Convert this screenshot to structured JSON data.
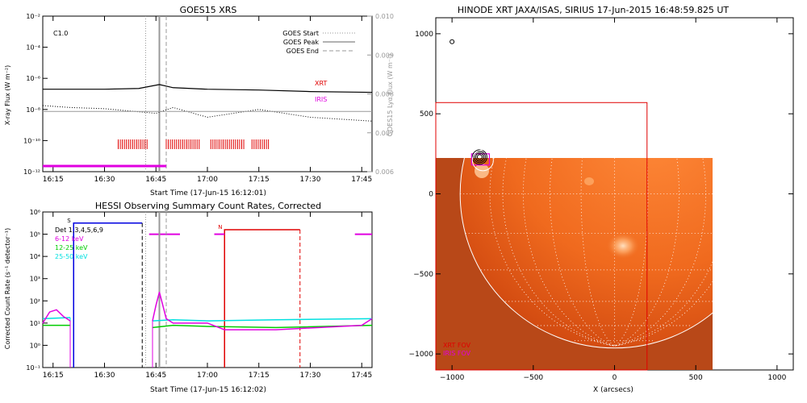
{
  "chart_data": [
    {
      "type": "line",
      "title": "GOES15 XRS",
      "xlabel": "Start Time (17-Jun-15 16:12:01)",
      "ylabel": "X-ray Flux (W m⁻²)",
      "ylabel_right": "GOES15 Lyα Flux (W m⁻²)",
      "x_ticks": [
        "16:15",
        "16:30",
        "16:45",
        "17:00",
        "17:15",
        "17:30",
        "17:45"
      ],
      "y_ticks": [
        "10⁻²",
        "10⁻⁴",
        "10⁻⁶",
        "10⁻⁸",
        "10⁻¹⁰",
        "10⁻¹²"
      ],
      "y2_ticks": [
        "0.010",
        "0.009",
        "0.008",
        "0.007",
        "0.006"
      ],
      "ylim_log10": [
        -12,
        -2
      ],
      "y2lim": [
        0.006,
        0.01
      ],
      "class_label": "C1.0",
      "legend": {
        "start": "GOES Start",
        "peak": "GOES Peak",
        "end": "GOES End"
      },
      "series_labels": {
        "xrt": "XRT",
        "iris": "IRIS"
      },
      "goes_times": {
        "start": "16:42",
        "peak": "16:46",
        "end": "16:48"
      },
      "series": [
        {
          "name": "GOES long",
          "x": [
            "16:12",
            "16:30",
            "16:40",
            "16:46",
            "16:50",
            "17:00",
            "17:15",
            "17:30",
            "17:48"
          ],
          "log10_values": [
            -6.7,
            -6.7,
            -6.65,
            -6.4,
            -6.6,
            -6.7,
            -6.75,
            -6.85,
            -6.9
          ]
        },
        {
          "name": "Lyα",
          "x": [
            "16:12",
            "16:20",
            "16:30",
            "16:45",
            "16:50",
            "17:00",
            "17:15",
            "17:30",
            "17:48"
          ],
          "values": [
            0.0077,
            0.00765,
            0.00762,
            0.0075,
            0.00765,
            0.0074,
            0.0076,
            0.0074,
            0.0073
          ]
        },
        {
          "name": "XRT",
          "x": [
            "16:34",
            "16:43",
            "16:48",
            "16:58",
            "17:01",
            "17:11",
            "17:13",
            "17:18"
          ]
        },
        {
          "name": "IRIS",
          "x": [
            "16:12",
            "16:48"
          ]
        }
      ]
    },
    {
      "type": "line",
      "title": "HESSI Observing Summary Count Rates, Corrected",
      "xlabel": "Start Time (17-Jun-15 16:12:02)",
      "ylabel": "Corrected Count Rate (s⁻¹ detector⁻¹)",
      "x_ticks": [
        "16:15",
        "16:30",
        "16:45",
        "17:00",
        "17:15",
        "17:30",
        "17:45"
      ],
      "y_ticks": [
        "10⁶",
        "10⁵",
        "10⁴",
        "10³",
        "10²",
        "10¹",
        "10⁰",
        "10⁻¹"
      ],
      "ylim_log10": [
        -1,
        6
      ],
      "det_label": "Det 1,3,4,5,6,9",
      "markers": [
        "S",
        "N"
      ],
      "series": [
        {
          "name": "6-12 keV",
          "color": "#e000e0",
          "x": [
            "16:12",
            "16:14",
            "16:16",
            "16:18",
            "16:20",
            "16:44",
            "16:45",
            "16:46",
            "16:47",
            "16:48",
            "16:50",
            "17:00",
            "17:05",
            "17:20",
            "17:45",
            "17:48"
          ],
          "log10_values": [
            1.0,
            1.5,
            1.6,
            1.3,
            1.1,
            1.1,
            1.8,
            2.4,
            1.8,
            1.2,
            1.0,
            1.0,
            0.7,
            0.7,
            0.9,
            1.2
          ]
        },
        {
          "name": "12-25 keV",
          "color": "#00cc00",
          "x": [
            "16:12",
            "16:20",
            "16:44",
            "16:50",
            "17:00",
            "17:20",
            "17:48"
          ],
          "log10_values": [
            0.9,
            0.9,
            0.8,
            0.9,
            0.85,
            0.8,
            0.9
          ]
        },
        {
          "name": "25-50 keV",
          "color": "#00e0e0",
          "x": [
            "16:12",
            "16:20",
            "16:44",
            "16:50",
            "17:00",
            "17:20",
            "17:48"
          ],
          "log10_values": [
            1.2,
            1.25,
            1.1,
            1.15,
            1.1,
            1.15,
            1.2
          ]
        }
      ],
      "attenuator_intervals": {
        "blue": [
          "16:21",
          "16:41"
        ],
        "red": [
          "17:05",
          "17:27"
        ]
      },
      "goes_times": {
        "start": "16:42",
        "peak": "16:46",
        "end": "16:48"
      }
    },
    {
      "type": "heatmap",
      "title": "HINODE XRT JAXA/ISAS, SIRIUS 17-Jun-2015 16:48:59.825 UT",
      "xlabel": "X (arcsecs)",
      "ylabel": "",
      "x_ticks": [
        "−1000",
        "−500",
        "0",
        "500",
        "1000"
      ],
      "y_ticks": [
        "1000",
        "500",
        "0",
        "−500",
        "−1000"
      ],
      "xlim": [
        -1100,
        1100
      ],
      "ylim": [
        -1100,
        1100
      ],
      "fov_legend": {
        "xrt": "XRT FOV",
        "iris": "IRIS FOV"
      },
      "image_extent_x": [
        -1100,
        620
      ],
      "image_extent_y": [
        -1100,
        230
      ],
      "xrt_fov": {
        "x": [
          -1100,
          200
        ],
        "y": [
          -1100,
          570
        ]
      },
      "iris_fov": {
        "x": [
          -880,
          -770
        ],
        "y": [
          180,
          250
        ]
      },
      "contour_center": {
        "x": -830,
        "y": 230
      }
    }
  ]
}
